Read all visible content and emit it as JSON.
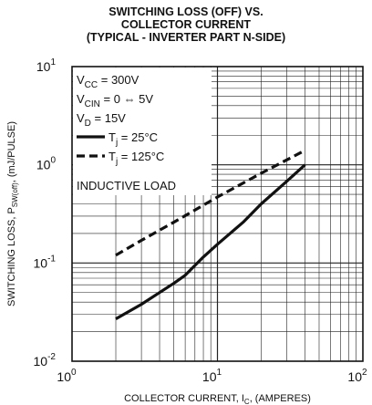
{
  "chart_data": {
    "type": "line",
    "title_lines": [
      "SWITCHING LOSS (OFF) VS.",
      "COLLECTOR CURRENT",
      "(TYPICAL - INVERTER PART N-SIDE)"
    ],
    "xlabel": "COLLECTOR CURRENT, I",
    "xlabel_sub": "C",
    "xlabel_tail": ", (AMPERES)",
    "ylabel": "SWITCHING LOSS, P",
    "ylabel_sub": "SW(off)",
    "ylabel_tail": ",  (mJ/PULSE)",
    "x_scale": "log",
    "y_scale": "log",
    "xlim": [
      1,
      100
    ],
    "ylim": [
      0.01,
      10
    ],
    "x_ticks": [
      {
        "base": "10",
        "exp": "0"
      },
      {
        "base": "10",
        "exp": "1"
      },
      {
        "base": "10",
        "exp": "2"
      }
    ],
    "y_ticks": [
      {
        "base": "10",
        "exp": "1"
      },
      {
        "base": "10",
        "exp": "0"
      },
      {
        "base": "10",
        "exp": "-1"
      },
      {
        "base": "10",
        "exp": "-2"
      }
    ],
    "grid": true,
    "annotations": {
      "vcc": {
        "main": "V",
        "sub": "CC",
        "rest": " = 300V"
      },
      "vcin": {
        "main": "V",
        "sub": "CIN",
        "rest": " = 0 ⇔ 5V"
      },
      "vd": {
        "main": "V",
        "sub": "D",
        "rest": " = 15V"
      },
      "inductive": "INDUCTIVE LOAD"
    },
    "series": [
      {
        "name": "T",
        "name_sub": "j",
        "name_rest": " = 25°C",
        "style": "solid",
        "x": [
          2,
          3,
          4,
          5,
          6,
          8,
          10,
          15,
          20,
          30,
          40
        ],
        "y": [
          0.027,
          0.038,
          0.05,
          0.062,
          0.075,
          0.115,
          0.155,
          0.26,
          0.4,
          0.68,
          1.0
        ]
      },
      {
        "name": "T",
        "name_sub": "j",
        "name_rest": " = 125°C",
        "style": "dashed",
        "x": [
          2,
          3,
          5,
          10,
          20,
          40
        ],
        "y": [
          0.12,
          0.17,
          0.26,
          0.47,
          0.82,
          1.4
        ]
      }
    ]
  }
}
